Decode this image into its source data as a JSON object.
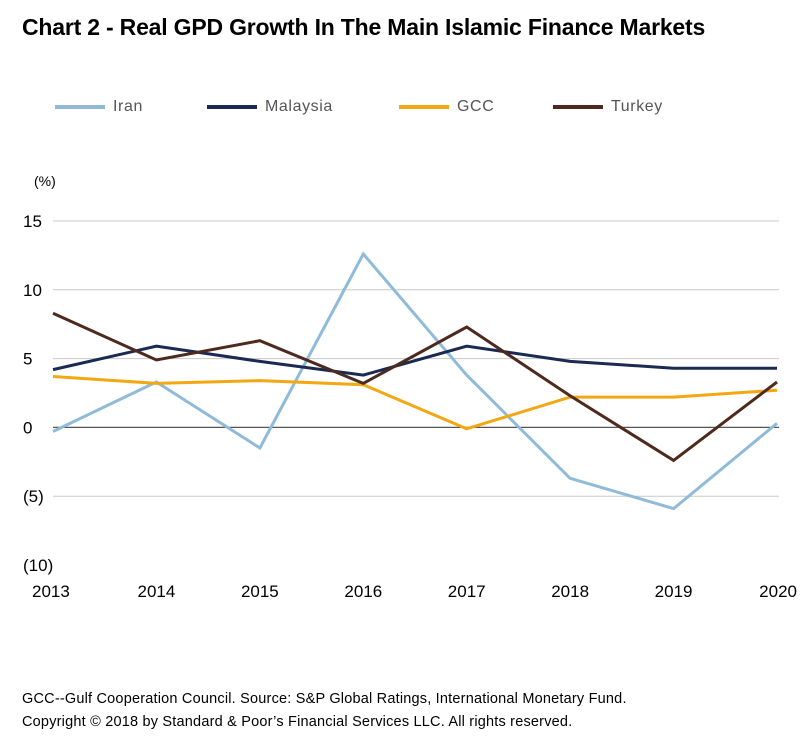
{
  "title": "Chart 2 - Real GPD Growth In The Main Islamic Finance Markets",
  "footer": {
    "source": "GCC--Gulf Cooperation Council. Source: S&P Global Ratings, International Monetary Fund.",
    "copyright": "Copyright © 2018 by Standard & Poor’s Financial Services LLC. All rights reserved."
  },
  "chart_data": {
    "type": "line",
    "title": "Chart 2 - Real GPD Growth In The Main Islamic Finance Markets",
    "xlabel": "",
    "ylabel": "(%)",
    "categories": [
      "2013",
      "2014",
      "2015",
      "2016",
      "2017",
      "2018",
      "2019",
      "2020"
    ],
    "ylim": [
      -10,
      15
    ],
    "yticks": [
      15,
      10,
      5,
      0,
      -5,
      -10
    ],
    "ytick_labels": [
      "15",
      "10",
      "5",
      "0",
      "(5)",
      "(10)"
    ],
    "grid": true,
    "legend_position": "top",
    "series": [
      {
        "name": "Iran",
        "color": "#8fbbd9",
        "values": [
          -0.3,
          3.3,
          -1.5,
          12.6,
          3.8,
          -3.7,
          -5.9,
          0.3
        ]
      },
      {
        "name": "Malaysia",
        "color": "#1b2a52",
        "values": [
          4.2,
          5.9,
          4.8,
          3.8,
          5.9,
          4.8,
          4.3,
          4.3
        ]
      },
      {
        "name": "GCC",
        "color": "#f3a712",
        "values": [
          3.7,
          3.2,
          3.4,
          3.1,
          -0.1,
          2.2,
          2.2,
          2.7
        ]
      },
      {
        "name": "Turkey",
        "color": "#4e2a1e",
        "values": [
          8.3,
          4.9,
          6.3,
          3.2,
          7.3,
          2.3,
          -2.4,
          3.3
        ]
      }
    ]
  }
}
